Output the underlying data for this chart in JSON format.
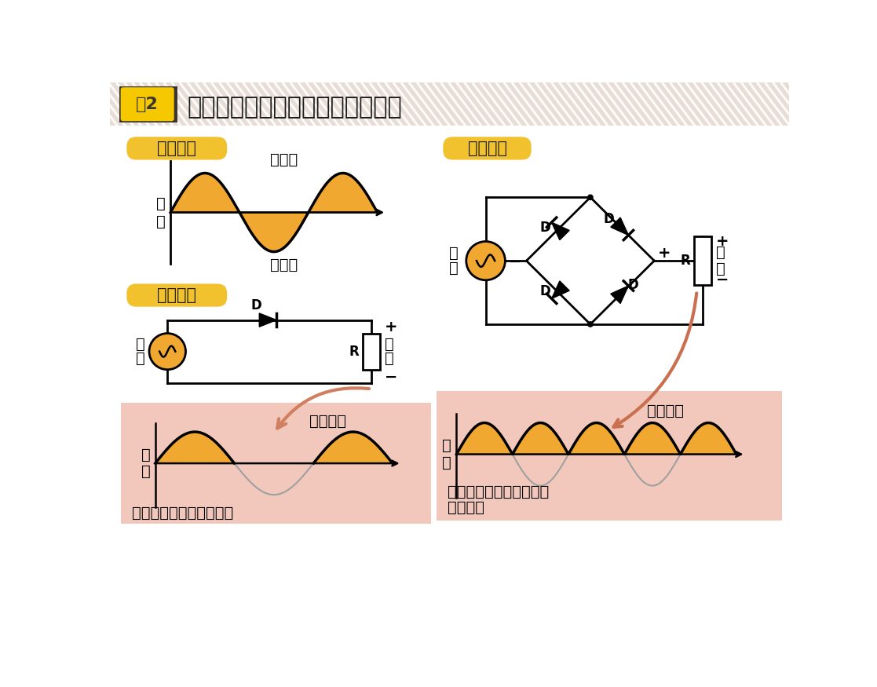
{
  "title": "ダイオードの半波整流と全波整流",
  "fig2_label": "図2",
  "bg_stripe_color": "#e8e0da",
  "header_dark_bg": "#3d3935",
  "yellow_box_color": "#f5c800",
  "yellow_badge_color": "#f2c12e",
  "badge_text_color": "#1a1a1a",
  "wave_fill_color": "#f0a830",
  "wave_line_color": "#1a1a1a",
  "pink_bg": "#f2c8bc",
  "white_bg": "#ffffff",
  "circuit_orange_fill": "#f0a830",
  "label_ac_wave": "交流波形",
  "label_half": "半波整流",
  "label_full": "全波整流",
  "label_junhoukou": "順方向",
  "label_gyakuhoukou": "逆方向",
  "label_kouryu1": "交",
  "label_kouryu2": "流",
  "label_shutsuryoku1": "出",
  "label_shutsuryoku2": "力",
  "label_hanpa_text": "逆方向電圧を出力しない",
  "label_zenpa_text1": "逆方向電圧を順方向側へ",
  "label_zenpa_text2": "出力する",
  "label_hanpa_label": "半波整流",
  "label_zenpa_label": "全波整流"
}
